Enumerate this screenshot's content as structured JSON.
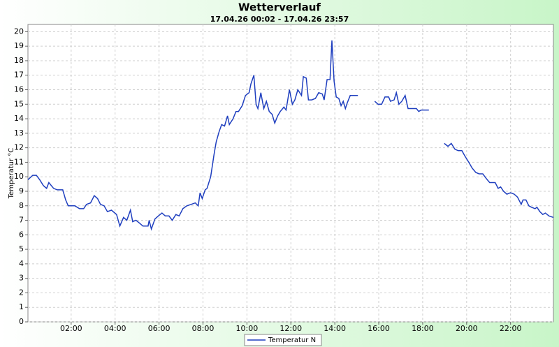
{
  "chart_data": {
    "type": "line",
    "title": "Wetterverlauf",
    "subtitle": "17.04.26 00:02 - 17.04.26 23:57",
    "y_label": "Temperatur °C",
    "x": [
      2,
      15,
      25,
      34,
      44,
      53,
      59,
      72,
      82,
      97,
      105,
      112,
      130,
      143,
      154,
      162,
      173,
      183,
      192,
      200,
      210,
      219,
      230,
      244,
      253,
      263,
      272,
      282,
      288,
      297,
      307,
      316,
      330,
      333,
      339,
      349,
      358,
      368,
      377,
      387,
      396,
      406,
      415,
      425,
      436,
      448,
      459,
      467,
      472,
      478,
      486,
      491,
      501,
      510,
      516,
      524,
      531,
      539,
      547,
      552,
      562,
      570,
      577,
      587,
      596,
      606,
      611,
      619,
      625,
      630,
      638,
      646,
      653,
      661,
      669,
      676,
      684,
      691,
      701,
      707,
      716,
      724,
      731,
      739,
      749,
      754,
      762,
      768,
      777,
      787,
      796,
      806,
      811,
      819,
      827,
      832,
      838,
      844,
      851,
      857,
      863,
      869,
      874,
      882,
      903,
      930,
      949,
      958,
      968,
      977,
      987,
      992,
      1002,
      1008,
      1015,
      1023,
      1032,
      1040,
      1053,
      1063,
      1069,
      1076,
      1097,
      1110,
      1139,
      1149,
      1158,
      1168,
      1177,
      1187,
      1196,
      1206,
      1215,
      1225,
      1234,
      1244,
      1253,
      1263,
      1278,
      1286,
      1293,
      1301,
      1310,
      1320,
      1330,
      1339,
      1349,
      1354,
      1362,
      1370,
      1377,
      1387,
      1392,
      1400,
      1408,
      1415,
      1425,
      1437
    ],
    "series": [
      {
        "name": "Temperatur N",
        "color": "#1f3fbf",
        "values": [
          9.8,
          10.1,
          10.1,
          9.8,
          9.4,
          9.2,
          9.6,
          9.2,
          9.1,
          9.1,
          8.4,
          8.0,
          8.0,
          7.8,
          7.8,
          8.1,
          8.2,
          8.7,
          8.5,
          8.1,
          8.0,
          7.6,
          7.7,
          7.4,
          6.6,
          7.2,
          7.0,
          7.7,
          6.9,
          7.0,
          6.8,
          6.6,
          6.6,
          7.0,
          6.4,
          7.1,
          7.3,
          7.5,
          7.3,
          7.3,
          7.0,
          7.4,
          7.3,
          7.8,
          8.0,
          8.1,
          8.2,
          8.0,
          8.9,
          8.5,
          9.1,
          9.2,
          10.0,
          11.5,
          12.4,
          13.1,
          13.6,
          13.5,
          14.2,
          13.6,
          14.0,
          14.5,
          14.5,
          14.9,
          15.6,
          15.8,
          16.4,
          17.0,
          15.0,
          14.7,
          15.8,
          14.7,
          15.2,
          14.5,
          14.3,
          13.7,
          14.2,
          14.5,
          14.8,
          14.6,
          16.0,
          15.0,
          15.3,
          16.0,
          15.6,
          16.9,
          16.8,
          15.3,
          15.3,
          15.4,
          15.8,
          15.7,
          15.3,
          16.7,
          16.7,
          19.4,
          16.6,
          15.5,
          15.4,
          14.9,
          15.2,
          14.7,
          15.1,
          15.6,
          15.6,
          null,
          15.2,
          15.0,
          15.0,
          15.5,
          15.5,
          15.2,
          15.3,
          15.8,
          15.0,
          15.2,
          15.6,
          14.7,
          14.7,
          14.7,
          14.5,
          14.6,
          14.6,
          null,
          12.3,
          12.1,
          12.3,
          11.9,
          11.8,
          11.8,
          11.4,
          11.0,
          10.6,
          10.3,
          10.2,
          10.2,
          9.9,
          9.6,
          9.6,
          9.2,
          9.3,
          9.0,
          8.8,
          8.9,
          8.8,
          8.6,
          8.1,
          8.4,
          8.4,
          8.0,
          7.9,
          7.8,
          7.9,
          7.6,
          7.4,
          7.5,
          7.3,
          7.2
        ]
      }
    ],
    "xlim": [
      2,
      1437
    ],
    "xticks": [
      {
        "value": 120,
        "label": "02:00"
      },
      {
        "value": 240,
        "label": "04:00"
      },
      {
        "value": 360,
        "label": "06:00"
      },
      {
        "value": 480,
        "label": "08:00"
      },
      {
        "value": 600,
        "label": "10:00"
      },
      {
        "value": 720,
        "label": "12:00"
      },
      {
        "value": 840,
        "label": "14:00"
      },
      {
        "value": 960,
        "label": "16:00"
      },
      {
        "value": 1080,
        "label": "18:00"
      },
      {
        "value": 1200,
        "label": "20:00"
      },
      {
        "value": 1320,
        "label": "22:00"
      }
    ],
    "ylim": [
      0,
      20.5
    ],
    "yticks": [
      0,
      1,
      2,
      3,
      4,
      5,
      6,
      7,
      8,
      9,
      10,
      11,
      12,
      13,
      14,
      15,
      16,
      17,
      18,
      19,
      20
    ],
    "grid": true
  }
}
